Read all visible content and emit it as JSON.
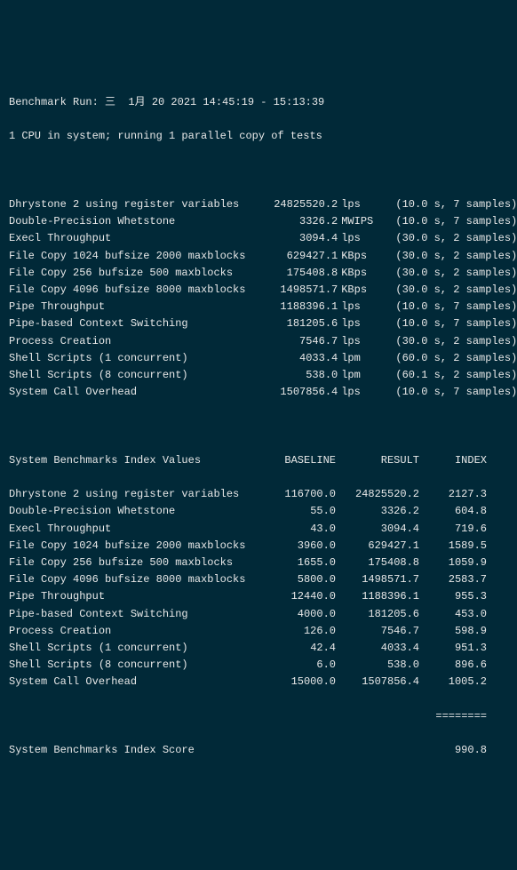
{
  "header": {
    "line1": "Benchmark Run: 三  1月 20 2021 14:45:19 - 15:13:39",
    "line2": "1 CPU in system; running 1 parallel copy of tests"
  },
  "results": [
    {
      "name": "Dhrystone 2 using register variables",
      "value": "24825520.2",
      "unit": "lps",
      "time": "(10.0 s, 7 samples)"
    },
    {
      "name": "Double-Precision Whetstone",
      "value": "3326.2",
      "unit": "MWIPS",
      "time": "(10.0 s, 7 samples)"
    },
    {
      "name": "Execl Throughput",
      "value": "3094.4",
      "unit": "lps",
      "time": "(30.0 s, 2 samples)"
    },
    {
      "name": "File Copy 1024 bufsize 2000 maxblocks",
      "value": "629427.1",
      "unit": "KBps",
      "time": "(30.0 s, 2 samples)"
    },
    {
      "name": "File Copy 256 bufsize 500 maxblocks",
      "value": "175408.8",
      "unit": "KBps",
      "time": "(30.0 s, 2 samples)"
    },
    {
      "name": "File Copy 4096 bufsize 8000 maxblocks",
      "value": "1498571.7",
      "unit": "KBps",
      "time": "(30.0 s, 2 samples)"
    },
    {
      "name": "Pipe Throughput",
      "value": "1188396.1",
      "unit": "lps",
      "time": "(10.0 s, 7 samples)"
    },
    {
      "name": "Pipe-based Context Switching",
      "value": "181205.6",
      "unit": "lps",
      "time": "(10.0 s, 7 samples)"
    },
    {
      "name": "Process Creation",
      "value": "7546.7",
      "unit": "lps",
      "time": "(30.0 s, 2 samples)"
    },
    {
      "name": "Shell Scripts (1 concurrent)",
      "value": "4033.4",
      "unit": "lpm",
      "time": "(60.0 s, 2 samples)"
    },
    {
      "name": "Shell Scripts (8 concurrent)",
      "value": "538.0",
      "unit": "lpm",
      "time": "(60.1 s, 2 samples)"
    },
    {
      "name": "System Call Overhead",
      "value": "1507856.4",
      "unit": "lps",
      "time": "(10.0 s, 7 samples)"
    }
  ],
  "index_header": {
    "title": "System Benchmarks Index Values",
    "c1": "BASELINE",
    "c2": "RESULT",
    "c3": "INDEX"
  },
  "index": [
    {
      "name": "Dhrystone 2 using register variables",
      "base": "116700.0",
      "result": "24825520.2",
      "idx": "2127.3"
    },
    {
      "name": "Double-Precision Whetstone",
      "base": "55.0",
      "result": "3326.2",
      "idx": "604.8"
    },
    {
      "name": "Execl Throughput",
      "base": "43.0",
      "result": "3094.4",
      "idx": "719.6"
    },
    {
      "name": "File Copy 1024 bufsize 2000 maxblocks",
      "base": "3960.0",
      "result": "629427.1",
      "idx": "1589.5"
    },
    {
      "name": "File Copy 256 bufsize 500 maxblocks",
      "base": "1655.0",
      "result": "175408.8",
      "idx": "1059.9"
    },
    {
      "name": "File Copy 4096 bufsize 8000 maxblocks",
      "base": "5800.0",
      "result": "1498571.7",
      "idx": "2583.7"
    },
    {
      "name": "Pipe Throughput",
      "base": "12440.0",
      "result": "1188396.1",
      "idx": "955.3"
    },
    {
      "name": "Pipe-based Context Switching",
      "base": "4000.0",
      "result": "181205.6",
      "idx": "453.0"
    },
    {
      "name": "Process Creation",
      "base": "126.0",
      "result": "7546.7",
      "idx": "598.9"
    },
    {
      "name": "Shell Scripts (1 concurrent)",
      "base": "42.4",
      "result": "4033.4",
      "idx": "951.3"
    },
    {
      "name": "Shell Scripts (8 concurrent)",
      "base": "6.0",
      "result": "538.0",
      "idx": "896.6"
    },
    {
      "name": "System Call Overhead",
      "base": "15000.0",
      "result": "1507856.4",
      "idx": "1005.2"
    }
  ],
  "separator": "========",
  "score": {
    "label": "System Benchmarks Index Score",
    "value": "990.8"
  }
}
